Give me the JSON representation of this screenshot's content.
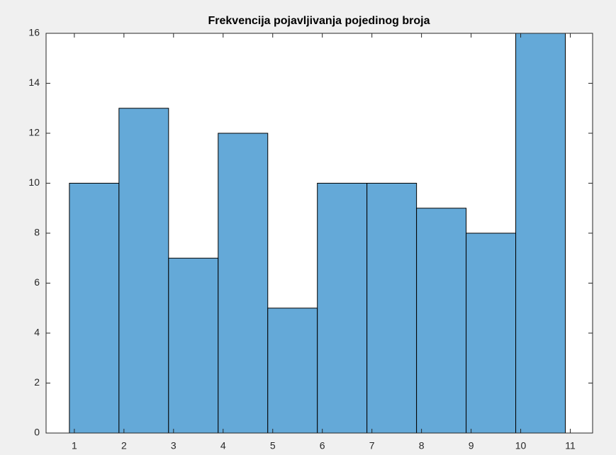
{
  "chart_data": {
    "type": "histogram",
    "title": "Frekvencija pojavljivanja pojedinog broja",
    "bins": [
      0.9,
      1.9,
      2.9,
      3.9,
      4.9,
      5.9,
      6.9,
      7.9,
      8.9,
      9.9,
      10.9
    ],
    "values": [
      10,
      13,
      7,
      12,
      5,
      10,
      10,
      9,
      8,
      16
    ],
    "color": "#64a9d8",
    "xlim": [
      0.43,
      11.45
    ],
    "xticks": [
      1,
      2,
      3,
      4,
      5,
      6,
      7,
      8,
      9,
      10,
      11
    ],
    "ylim": [
      0,
      16
    ],
    "yticks": [
      0,
      2,
      4,
      6,
      8,
      10,
      12,
      14,
      16
    ],
    "grid": false
  }
}
